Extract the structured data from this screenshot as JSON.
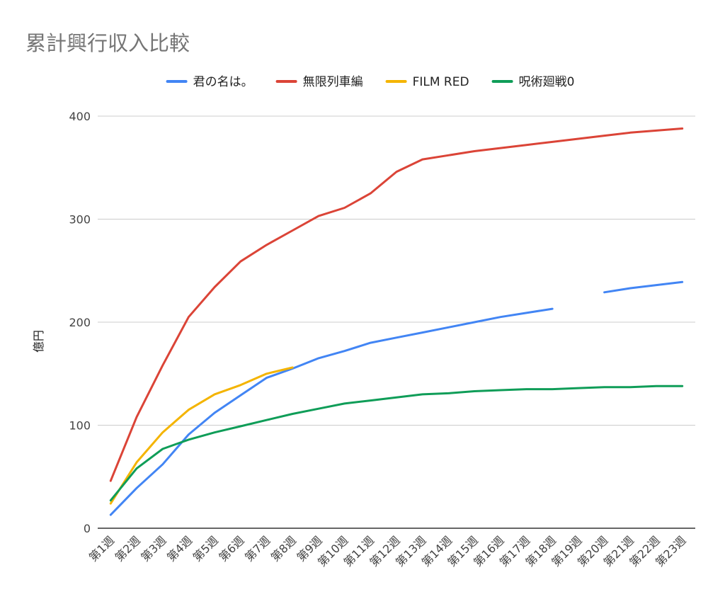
{
  "chart_data": {
    "type": "line",
    "title": "累計興行収入比較",
    "ylabel": "億円",
    "xlabel": "",
    "ylim": [
      0,
      400
    ],
    "yticks": [
      0,
      100,
      200,
      300,
      400
    ],
    "grid": true,
    "legend_position": "top",
    "categories": [
      "第1週",
      "第2週",
      "第3週",
      "第4週",
      "第5週",
      "第6週",
      "第7週",
      "第8週",
      "第9週",
      "第10週",
      "第11週",
      "第12週",
      "第13週",
      "第14週",
      "第15週",
      "第16週",
      "第17週",
      "第18週",
      "第19週",
      "第20週",
      "第21週",
      "第22週",
      "第23週"
    ],
    "series": [
      {
        "name": "君の名は。",
        "color": "#4285f4",
        "values": [
          13,
          39,
          62,
          91,
          112,
          129,
          146,
          155,
          165,
          172,
          180,
          185,
          190,
          195,
          200,
          205,
          209,
          213,
          null,
          229,
          233,
          236,
          239
        ]
      },
      {
        "name": "無限列車編",
        "color": "#db4437",
        "values": [
          46,
          108,
          158,
          205,
          234,
          259,
          275,
          289,
          303,
          311,
          325,
          346,
          358,
          362,
          366,
          369,
          372,
          375,
          378,
          381,
          384,
          386,
          388
        ]
      },
      {
        "name": "FILM RED",
        "color": "#f4b400",
        "values": [
          24,
          64,
          93,
          115,
          130,
          139,
          150,
          156,
          null,
          null,
          null,
          null,
          null,
          null,
          null,
          null,
          null,
          null,
          null,
          null,
          null,
          null,
          null
        ]
      },
      {
        "name": "呪術廻戦0",
        "color": "#0f9d58",
        "values": [
          27,
          58,
          77,
          86,
          93,
          99,
          105,
          111,
          116,
          121,
          124,
          127,
          130,
          131,
          133,
          134,
          135,
          135,
          136,
          137,
          137,
          138,
          138
        ]
      }
    ]
  }
}
